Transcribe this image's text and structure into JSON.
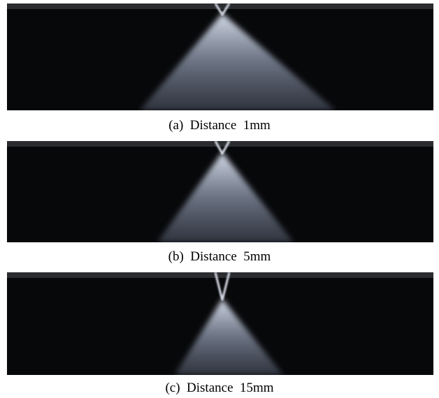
{
  "figure": {
    "panels": [
      {
        "caption": "(a)  Distance  1mm"
      },
      {
        "caption": "(b)  Distance  5mm"
      },
      {
        "caption": "(c)  Distance  15mm"
      }
    ]
  }
}
